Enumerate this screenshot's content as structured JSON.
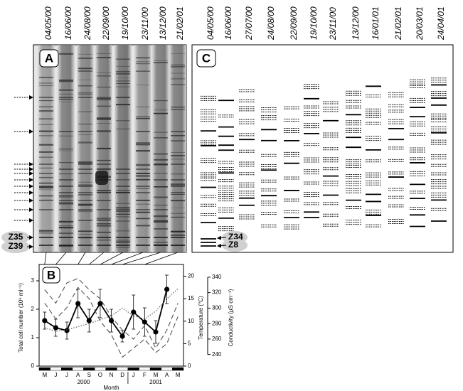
{
  "panel_a": {
    "letter": "A",
    "lanes": [
      "04/05/00",
      "16/06/00",
      "24/08/00",
      "22/09/00",
      "19/10/00",
      "23/11/00",
      "13/12/00",
      "21/02/01"
    ],
    "markers": [
      "Z35",
      "Z39"
    ]
  },
  "panel_c": {
    "letter": "C",
    "lanes": [
      "04/05/00",
      "16/06/00",
      "27/07/00",
      "24/08/00",
      "22/09/00",
      "19/10/00",
      "23/11/00",
      "13/12/00",
      "16/01/01",
      "21/02/01",
      "20/03/01",
      "24/04/01"
    ],
    "markers": [
      "Z34",
      "Z8"
    ]
  },
  "chart_data": {
    "type": "line",
    "panel": "B",
    "categories": [
      "M",
      "J",
      "J",
      "A",
      "S",
      "O",
      "N",
      "D",
      "J",
      "F",
      "M",
      "A",
      "M"
    ],
    "year_labels": [
      "2000",
      "2001"
    ],
    "xlabel": "Month",
    "ylabel": "Total cell number (10⁶ ml⁻¹)",
    "y2label": "Temperature (°C)",
    "y3label": "Conductivity (μS cm⁻¹)",
    "ylim": [
      0,
      3.4
    ],
    "yticks": [
      0,
      1,
      2,
      3
    ],
    "y2lim": [
      0,
      21.5
    ],
    "y2ticks": [
      0,
      5,
      10,
      15,
      20
    ],
    "y3lim": [
      225,
      350
    ],
    "y3ticks": [
      240,
      260,
      280,
      300,
      320,
      340
    ],
    "series": [
      {
        "color": "#000000",
        "style": "solid",
        "marker": "circle",
        "values": [
          1.6,
          1.35,
          1.25,
          2.2,
          1.6,
          2.2,
          1.6,
          1.05,
          1.9,
          1.55,
          1.2,
          2.7,
          null
        ],
        "errors": [
          0.3,
          0.3,
          0.3,
          0.5,
          0.4,
          0.5,
          0.4,
          0.2,
          0.6,
          0.5,
          0.4,
          0.5,
          null
        ]
      },
      {
        "axis": "y2",
        "color": "#555555",
        "style": "dashed",
        "values": [
          17,
          14,
          18.5,
          19.5,
          17,
          15,
          11,
          8,
          6,
          9,
          4,
          8,
          14
        ]
      },
      {
        "axis": "y2",
        "color": "#555555",
        "style": "dashed",
        "values": [
          14,
          10.5,
          13,
          17.5,
          15,
          10,
          7,
          2,
          4,
          6,
          3,
          5,
          11
        ]
      },
      {
        "axis": "y3",
        "color": "#555555",
        "style": "dotted",
        "values": [
          275,
          270,
          272,
          276,
          280,
          285,
          290,
          300,
          290,
          286,
          296,
          312,
          325
        ]
      }
    ]
  }
}
